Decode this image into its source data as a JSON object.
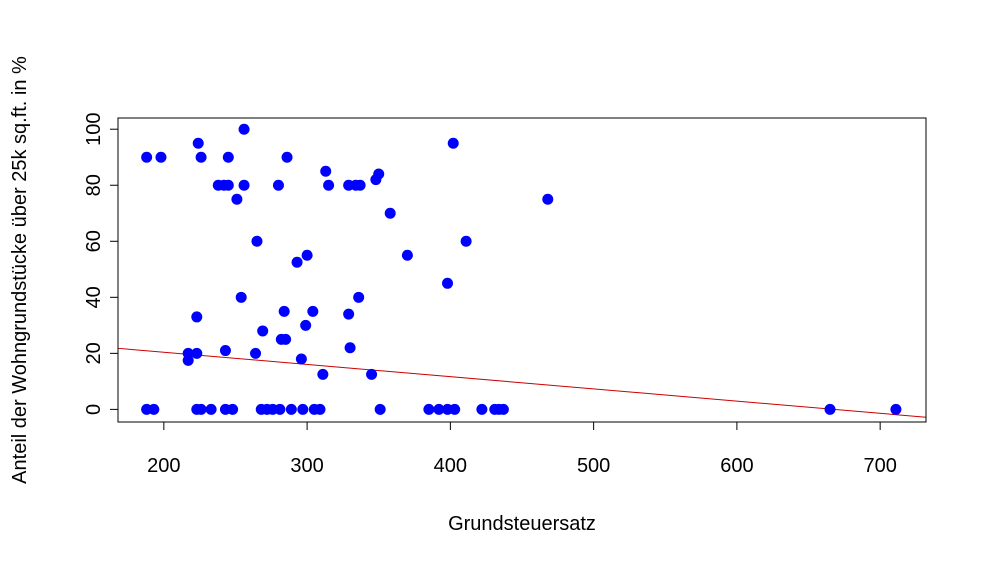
{
  "chart_data": {
    "type": "scatter",
    "title": "",
    "xlabel": "Grundsteuersatz",
    "ylabel": "Anteil der Wohngrundstücke über 25k sq.ft. in %",
    "xlim": [
      168,
      732
    ],
    "ylim": [
      -4.5,
      104
    ],
    "x_ticks": [
      200,
      300,
      400,
      500,
      600,
      700
    ],
    "y_ticks": [
      0,
      20,
      40,
      60,
      80,
      100
    ],
    "grid": false,
    "point_color": "#0000ff",
    "line_color": "#cc0000",
    "regression_line": {
      "x": [
        168,
        732
      ],
      "y": [
        21.8,
        -2.8
      ]
    },
    "points": [
      [
        188,
        90
      ],
      [
        198,
        90
      ],
      [
        217,
        17.5
      ],
      [
        217,
        20
      ],
      [
        223,
        33
      ],
      [
        223,
        20
      ],
      [
        224,
        95
      ],
      [
        226,
        90
      ],
      [
        238,
        80
      ],
      [
        242,
        80
      ],
      [
        245,
        90
      ],
      [
        245,
        80
      ],
      [
        243,
        21
      ],
      [
        251,
        75
      ],
      [
        254,
        40
      ],
      [
        256,
        80
      ],
      [
        256,
        100
      ],
      [
        264,
        20
      ],
      [
        265,
        60
      ],
      [
        269,
        28
      ],
      [
        280,
        80
      ],
      [
        282,
        25
      ],
      [
        285,
        25
      ],
      [
        284,
        35
      ],
      [
        286,
        90
      ],
      [
        293,
        52.5
      ],
      [
        296,
        18
      ],
      [
        299,
        30
      ],
      [
        300,
        55
      ],
      [
        304,
        35
      ],
      [
        311,
        12.5
      ],
      [
        313,
        85
      ],
      [
        315,
        80
      ],
      [
        329,
        80
      ],
      [
        330,
        22
      ],
      [
        329,
        34
      ],
      [
        334,
        80
      ],
      [
        337,
        80
      ],
      [
        336,
        40
      ],
      [
        345,
        12.5
      ],
      [
        348,
        82
      ],
      [
        350,
        84
      ],
      [
        358,
        70
      ],
      [
        370,
        55
      ],
      [
        398,
        45
      ],
      [
        402,
        95
      ],
      [
        411,
        60
      ],
      [
        468,
        75
      ],
      [
        188,
        0
      ],
      [
        193,
        0
      ],
      [
        223,
        0
      ],
      [
        226,
        0
      ],
      [
        233,
        0
      ],
      [
        243,
        0
      ],
      [
        248,
        0
      ],
      [
        268,
        0
      ],
      [
        272,
        0
      ],
      [
        276,
        0
      ],
      [
        281,
        0
      ],
      [
        289,
        0
      ],
      [
        297,
        0
      ],
      [
        305,
        0
      ],
      [
        309,
        0
      ],
      [
        351,
        0
      ],
      [
        385,
        0
      ],
      [
        392,
        0
      ],
      [
        398,
        0
      ],
      [
        403,
        0
      ],
      [
        422,
        0
      ],
      [
        431,
        0
      ],
      [
        434,
        0
      ],
      [
        437,
        0
      ],
      [
        665,
        0
      ],
      [
        711,
        0
      ]
    ]
  }
}
